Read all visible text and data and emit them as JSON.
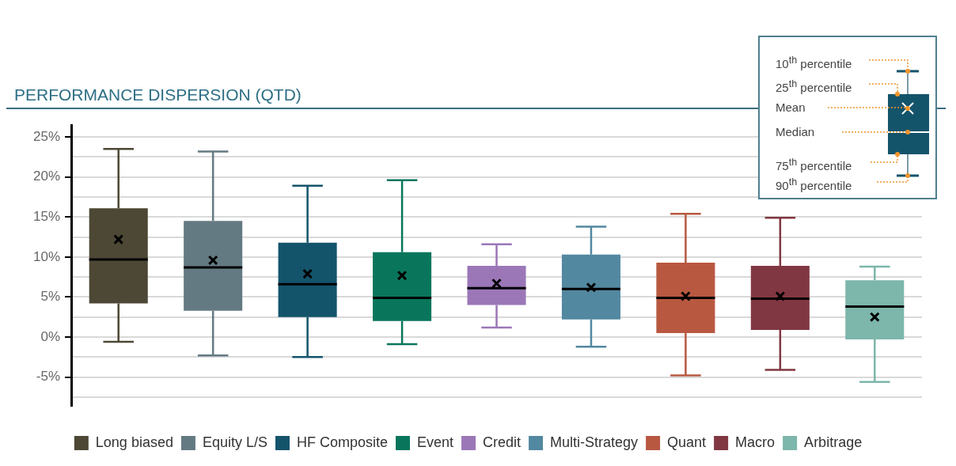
{
  "chart_data": {
    "type": "box",
    "title": "PERFORMANCE DISPERSION (QTD)",
    "categories": [
      null,
      null,
      null,
      null,
      null,
      null,
      null,
      null,
      null
    ],
    "series": [
      {
        "name": "Long biased",
        "color": "#4d4835",
        "boxes": [
          {
            "low": -0.6,
            "q1": 4.2,
            "median": 9.7,
            "q3": 16.1,
            "high": 23.5,
            "mean": 12.2
          },
          null,
          null,
          null,
          null,
          null,
          null,
          null,
          null
        ]
      },
      {
        "name": "Equity L/S",
        "color": "#647a83",
        "boxes": [
          null,
          {
            "low": -2.3,
            "q1": 3.3,
            "median": 8.7,
            "q3": 14.5,
            "high": 23.2,
            "mean": 9.6
          },
          null,
          null,
          null,
          null,
          null,
          null,
          null
        ]
      },
      {
        "name": "HF Composite",
        "color": "#14546b",
        "boxes": [
          null,
          null,
          {
            "low": -2.5,
            "q1": 2.5,
            "median": 6.6,
            "q3": 11.8,
            "high": 18.9,
            "mean": 7.9
          },
          null,
          null,
          null,
          null,
          null,
          null
        ]
      },
      {
        "name": "Event",
        "color": "#09765c",
        "boxes": [
          null,
          null,
          null,
          {
            "low": -0.9,
            "q1": 2.0,
            "median": 4.9,
            "q3": 10.6,
            "high": 19.6,
            "mean": 7.7
          },
          null,
          null,
          null,
          null,
          null
        ]
      },
      {
        "name": "Credit",
        "color": "#9b77b8",
        "boxes": [
          null,
          null,
          null,
          null,
          {
            "low": 1.2,
            "q1": 4.0,
            "median": 6.1,
            "q3": 8.9,
            "high": 11.6,
            "mean": 6.7
          },
          null,
          null,
          null,
          null
        ]
      },
      {
        "name": "Multi-Strategy",
        "color": "#5288a0",
        "boxes": [
          null,
          null,
          null,
          null,
          null,
          {
            "low": -1.2,
            "q1": 2.2,
            "median": 6.0,
            "q3": 10.3,
            "high": 13.8,
            "mean": 6.2
          },
          null,
          null,
          null
        ]
      },
      {
        "name": "Quant",
        "color": "#b85841",
        "boxes": [
          null,
          null,
          null,
          null,
          null,
          null,
          {
            "low": -4.8,
            "q1": 0.5,
            "median": 4.9,
            "q3": 9.3,
            "high": 15.4,
            "mean": 5.1
          },
          null,
          null
        ]
      },
      {
        "name": "Macro",
        "color": "#813742",
        "boxes": [
          null,
          null,
          null,
          null,
          null,
          null,
          null,
          {
            "low": -4.1,
            "q1": 0.9,
            "median": 4.8,
            "q3": 8.9,
            "high": 14.9,
            "mean": 5.1
          },
          null
        ]
      },
      {
        "name": "Arbitrage",
        "color": "#7db6ab",
        "boxes": [
          null,
          null,
          null,
          null,
          null,
          null,
          null,
          null,
          {
            "low": -5.6,
            "q1": -0.3,
            "median": 3.8,
            "q3": 7.1,
            "high": 8.8,
            "mean": 2.5
          }
        ]
      }
    ],
    "marker": "cross",
    "ylim": [
      -8.6,
      26.5
    ],
    "yticks": [
      {
        "value": -7.5,
        "label": null
      },
      {
        "value": -5,
        "label": "-5%"
      },
      {
        "value": -2.5,
        "label": null
      },
      {
        "value": 0,
        "label": "0%"
      },
      {
        "value": 2.5,
        "label": null
      },
      {
        "value": 5,
        "label": "5%"
      },
      {
        "value": 7.5,
        "label": null
      },
      {
        "value": 10,
        "label": "10%"
      },
      {
        "value": 12.5,
        "label": null
      },
      {
        "value": 15,
        "label": "15%"
      },
      {
        "value": 17.5,
        "label": null
      },
      {
        "value": 20,
        "label": "20%"
      },
      {
        "value": 22.5,
        "label": null
      },
      {
        "value": 25,
        "label": "25%"
      }
    ],
    "grid": "y",
    "legend": "bottom",
    "tick_labels": "y",
    "annotations": [
      "10$^{th}$ percentile",
      "25$^{th}$ percentile",
      "Mean",
      "Median",
      "75$^{th}$ percentile",
      "90$^{th}$ percentile"
    ]
  }
}
